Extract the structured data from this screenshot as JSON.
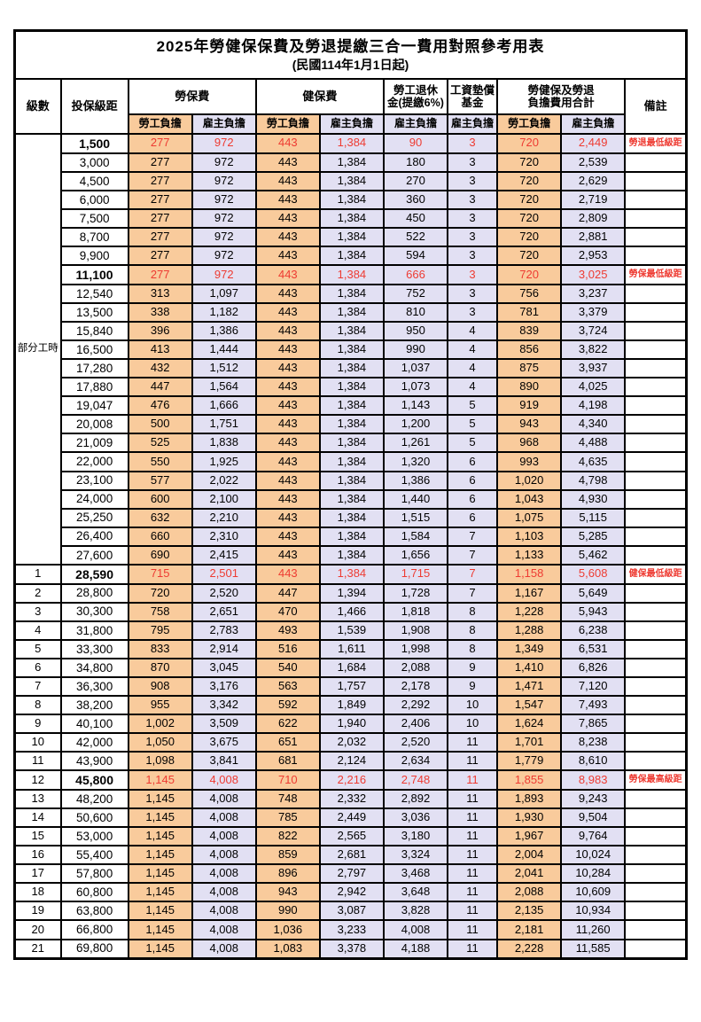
{
  "title": "2025年勞健保保費及勞退提繳三合一費用對照參考用表",
  "subtitle": "(民國114年1月1日起)",
  "colors": {
    "employee_bg": "#f9cb9c",
    "employer_bg": "#e2e0f3",
    "highlight_red": "#ee3b32",
    "border": "#000000"
  },
  "header": {
    "level": "級數",
    "bracket": "投保級距",
    "labor_insurance": "勞保費",
    "health_insurance": "健保費",
    "pension_l1": "勞工退休",
    "pension_l2": "金(提繳6%)",
    "fund_l1": "工資墊償",
    "fund_l2": "基金",
    "total_l1": "勞健保及勞退",
    "total_l2": "負擔費用合計",
    "remark": "備註",
    "employee": "勞工負擔",
    "employer": "雇主負擔"
  },
  "part_time_label": "部分工時",
  "part_time_rowspan": 23,
  "rows": [
    {
      "lv": null,
      "br": "1,500",
      "v": [
        "277",
        "972",
        "443",
        "1,384",
        "90",
        "3",
        "720",
        "2,449"
      ],
      "rm": "勞退最低級距",
      "hl": true
    },
    {
      "lv": null,
      "br": "3,000",
      "v": [
        "277",
        "972",
        "443",
        "1,384",
        "180",
        "3",
        "720",
        "2,539"
      ],
      "rm": "",
      "hl": false
    },
    {
      "lv": null,
      "br": "4,500",
      "v": [
        "277",
        "972",
        "443",
        "1,384",
        "270",
        "3",
        "720",
        "2,629"
      ],
      "rm": "",
      "hl": false
    },
    {
      "lv": null,
      "br": "6,000",
      "v": [
        "277",
        "972",
        "443",
        "1,384",
        "360",
        "3",
        "720",
        "2,719"
      ],
      "rm": "",
      "hl": false
    },
    {
      "lv": null,
      "br": "7,500",
      "v": [
        "277",
        "972",
        "443",
        "1,384",
        "450",
        "3",
        "720",
        "2,809"
      ],
      "rm": "",
      "hl": false
    },
    {
      "lv": null,
      "br": "8,700",
      "v": [
        "277",
        "972",
        "443",
        "1,384",
        "522",
        "3",
        "720",
        "2,881"
      ],
      "rm": "",
      "hl": false
    },
    {
      "lv": null,
      "br": "9,900",
      "v": [
        "277",
        "972",
        "443",
        "1,384",
        "594",
        "3",
        "720",
        "2,953"
      ],
      "rm": "",
      "hl": false
    },
    {
      "lv": null,
      "br": "11,100",
      "v": [
        "277",
        "972",
        "443",
        "1,384",
        "666",
        "3",
        "720",
        "3,025"
      ],
      "rm": "勞保最低級距",
      "hl": true
    },
    {
      "lv": null,
      "br": "12,540",
      "v": [
        "313",
        "1,097",
        "443",
        "1,384",
        "752",
        "3",
        "756",
        "3,237"
      ],
      "rm": "",
      "hl": false
    },
    {
      "lv": null,
      "br": "13,500",
      "v": [
        "338",
        "1,182",
        "443",
        "1,384",
        "810",
        "3",
        "781",
        "3,379"
      ],
      "rm": "",
      "hl": false
    },
    {
      "lv": null,
      "br": "15,840",
      "v": [
        "396",
        "1,386",
        "443",
        "1,384",
        "950",
        "4",
        "839",
        "3,724"
      ],
      "rm": "",
      "hl": false
    },
    {
      "lv": null,
      "br": "16,500",
      "v": [
        "413",
        "1,444",
        "443",
        "1,384",
        "990",
        "4",
        "856",
        "3,822"
      ],
      "rm": "",
      "hl": false
    },
    {
      "lv": null,
      "br": "17,280",
      "v": [
        "432",
        "1,512",
        "443",
        "1,384",
        "1,037",
        "4",
        "875",
        "3,937"
      ],
      "rm": "",
      "hl": false
    },
    {
      "lv": null,
      "br": "17,880",
      "v": [
        "447",
        "1,564",
        "443",
        "1,384",
        "1,073",
        "4",
        "890",
        "4,025"
      ],
      "rm": "",
      "hl": false
    },
    {
      "lv": null,
      "br": "19,047",
      "v": [
        "476",
        "1,666",
        "443",
        "1,384",
        "1,143",
        "5",
        "919",
        "4,198"
      ],
      "rm": "",
      "hl": false
    },
    {
      "lv": null,
      "br": "20,008",
      "v": [
        "500",
        "1,751",
        "443",
        "1,384",
        "1,200",
        "5",
        "943",
        "4,340"
      ],
      "rm": "",
      "hl": false
    },
    {
      "lv": null,
      "br": "21,009",
      "v": [
        "525",
        "1,838",
        "443",
        "1,384",
        "1,261",
        "5",
        "968",
        "4,488"
      ],
      "rm": "",
      "hl": false
    },
    {
      "lv": null,
      "br": "22,000",
      "v": [
        "550",
        "1,925",
        "443",
        "1,384",
        "1,320",
        "6",
        "993",
        "4,635"
      ],
      "rm": "",
      "hl": false
    },
    {
      "lv": null,
      "br": "23,100",
      "v": [
        "577",
        "2,022",
        "443",
        "1,384",
        "1,386",
        "6",
        "1,020",
        "4,798"
      ],
      "rm": "",
      "hl": false
    },
    {
      "lv": null,
      "br": "24,000",
      "v": [
        "600",
        "2,100",
        "443",
        "1,384",
        "1,440",
        "6",
        "1,043",
        "4,930"
      ],
      "rm": "",
      "hl": false
    },
    {
      "lv": null,
      "br": "25,250",
      "v": [
        "632",
        "2,210",
        "443",
        "1,384",
        "1,515",
        "6",
        "1,075",
        "5,115"
      ],
      "rm": "",
      "hl": false
    },
    {
      "lv": null,
      "br": "26,400",
      "v": [
        "660",
        "2,310",
        "443",
        "1,384",
        "1,584",
        "7",
        "1,103",
        "5,285"
      ],
      "rm": "",
      "hl": false
    },
    {
      "lv": null,
      "br": "27,600",
      "v": [
        "690",
        "2,415",
        "443",
        "1,384",
        "1,656",
        "7",
        "1,133",
        "5,462"
      ],
      "rm": "",
      "hl": false
    },
    {
      "lv": "1",
      "br": "28,590",
      "v": [
        "715",
        "2,501",
        "443",
        "1,384",
        "1,715",
        "7",
        "1,158",
        "5,608"
      ],
      "rm": "健保最低級距",
      "hl": true
    },
    {
      "lv": "2",
      "br": "28,800",
      "v": [
        "720",
        "2,520",
        "447",
        "1,394",
        "1,728",
        "7",
        "1,167",
        "5,649"
      ],
      "rm": "",
      "hl": false
    },
    {
      "lv": "3",
      "br": "30,300",
      "v": [
        "758",
        "2,651",
        "470",
        "1,466",
        "1,818",
        "8",
        "1,228",
        "5,943"
      ],
      "rm": "",
      "hl": false
    },
    {
      "lv": "4",
      "br": "31,800",
      "v": [
        "795",
        "2,783",
        "493",
        "1,539",
        "1,908",
        "8",
        "1,288",
        "6,238"
      ],
      "rm": "",
      "hl": false
    },
    {
      "lv": "5",
      "br": "33,300",
      "v": [
        "833",
        "2,914",
        "516",
        "1,611",
        "1,998",
        "8",
        "1,349",
        "6,531"
      ],
      "rm": "",
      "hl": false
    },
    {
      "lv": "6",
      "br": "34,800",
      "v": [
        "870",
        "3,045",
        "540",
        "1,684",
        "2,088",
        "9",
        "1,410",
        "6,826"
      ],
      "rm": "",
      "hl": false
    },
    {
      "lv": "7",
      "br": "36,300",
      "v": [
        "908",
        "3,176",
        "563",
        "1,757",
        "2,178",
        "9",
        "1,471",
        "7,120"
      ],
      "rm": "",
      "hl": false
    },
    {
      "lv": "8",
      "br": "38,200",
      "v": [
        "955",
        "3,342",
        "592",
        "1,849",
        "2,292",
        "10",
        "1,547",
        "7,493"
      ],
      "rm": "",
      "hl": false
    },
    {
      "lv": "9",
      "br": "40,100",
      "v": [
        "1,002",
        "3,509",
        "622",
        "1,940",
        "2,406",
        "10",
        "1,624",
        "7,865"
      ],
      "rm": "",
      "hl": false
    },
    {
      "lv": "10",
      "br": "42,000",
      "v": [
        "1,050",
        "3,675",
        "651",
        "2,032",
        "2,520",
        "11",
        "1,701",
        "8,238"
      ],
      "rm": "",
      "hl": false
    },
    {
      "lv": "11",
      "br": "43,900",
      "v": [
        "1,098",
        "3,841",
        "681",
        "2,124",
        "2,634",
        "11",
        "1,779",
        "8,610"
      ],
      "rm": "",
      "hl": false
    },
    {
      "lv": "12",
      "br": "45,800",
      "v": [
        "1,145",
        "4,008",
        "710",
        "2,216",
        "2,748",
        "11",
        "1,855",
        "8,983"
      ],
      "rm": "勞保最高級距",
      "hl": true
    },
    {
      "lv": "13",
      "br": "48,200",
      "v": [
        "1,145",
        "4,008",
        "748",
        "2,332",
        "2,892",
        "11",
        "1,893",
        "9,243"
      ],
      "rm": "",
      "hl": false
    },
    {
      "lv": "14",
      "br": "50,600",
      "v": [
        "1,145",
        "4,008",
        "785",
        "2,449",
        "3,036",
        "11",
        "1,930",
        "9,504"
      ],
      "rm": "",
      "hl": false
    },
    {
      "lv": "15",
      "br": "53,000",
      "v": [
        "1,145",
        "4,008",
        "822",
        "2,565",
        "3,180",
        "11",
        "1,967",
        "9,764"
      ],
      "rm": "",
      "hl": false
    },
    {
      "lv": "16",
      "br": "55,400",
      "v": [
        "1,145",
        "4,008",
        "859",
        "2,681",
        "3,324",
        "11",
        "2,004",
        "10,024"
      ],
      "rm": "",
      "hl": false
    },
    {
      "lv": "17",
      "br": "57,800",
      "v": [
        "1,145",
        "4,008",
        "896",
        "2,797",
        "3,468",
        "11",
        "2,041",
        "10,284"
      ],
      "rm": "",
      "hl": false
    },
    {
      "lv": "18",
      "br": "60,800",
      "v": [
        "1,145",
        "4,008",
        "943",
        "2,942",
        "3,648",
        "11",
        "2,088",
        "10,609"
      ],
      "rm": "",
      "hl": false
    },
    {
      "lv": "19",
      "br": "63,800",
      "v": [
        "1,145",
        "4,008",
        "990",
        "3,087",
        "3,828",
        "11",
        "2,135",
        "10,934"
      ],
      "rm": "",
      "hl": false
    },
    {
      "lv": "20",
      "br": "66,800",
      "v": [
        "1,145",
        "4,008",
        "1,036",
        "3,233",
        "4,008",
        "11",
        "2,181",
        "11,260"
      ],
      "rm": "",
      "hl": false
    },
    {
      "lv": "21",
      "br": "69,800",
      "v": [
        "1,145",
        "4,008",
        "1,083",
        "3,378",
        "4,188",
        "11",
        "2,228",
        "11,585"
      ],
      "rm": "",
      "hl": false
    }
  ]
}
